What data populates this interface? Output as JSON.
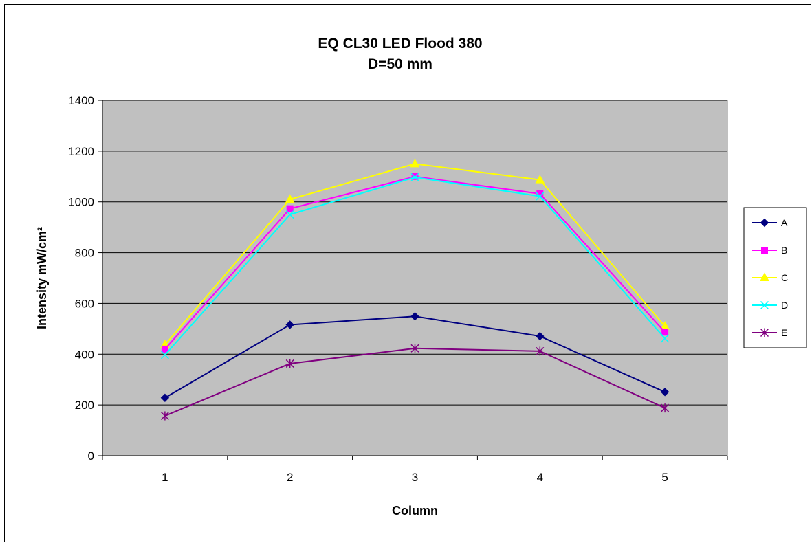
{
  "chart_data": {
    "type": "line",
    "title": "EQ CL30 LED Flood 380",
    "subtitle": "D=50 mm",
    "xlabel": "Column",
    "ylabel": "Intensity mW/cm²",
    "categories": [
      "1",
      "2",
      "3",
      "4",
      "5"
    ],
    "ylim": [
      0,
      1400
    ],
    "y_ticks": [
      "0",
      "200",
      "400",
      "600",
      "800",
      "1000",
      "1200",
      "1400"
    ],
    "grid": "horizontal major",
    "plot_background": "#c0c0c0",
    "legend_position": "right",
    "series": [
      {
        "name": "A",
        "color": "#000080",
        "marker": "diamond",
        "values": [
          228,
          516,
          549,
          471,
          251
        ]
      },
      {
        "name": "B",
        "color": "#ff00ff",
        "marker": "square",
        "values": [
          420,
          973,
          1100,
          1032,
          487
        ]
      },
      {
        "name": "C",
        "color": "#ffff00",
        "marker": "triangle",
        "values": [
          437,
          1010,
          1150,
          1087,
          510
        ]
      },
      {
        "name": "D",
        "color": "#00ffff",
        "marker": "x",
        "values": [
          397,
          950,
          1097,
          1022,
          462
        ]
      },
      {
        "name": "E",
        "color": "#800080",
        "marker": "star",
        "values": [
          157,
          363,
          423,
          412,
          188
        ]
      }
    ]
  }
}
